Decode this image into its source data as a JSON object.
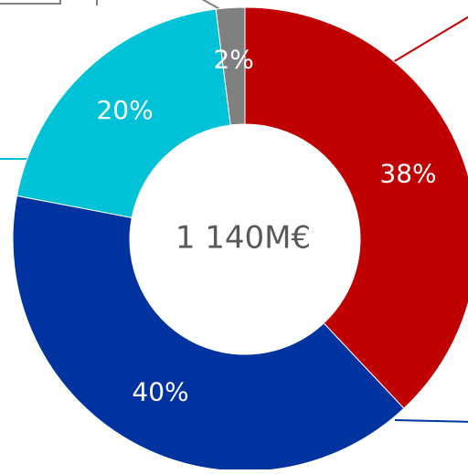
{
  "chart_data": {
    "type": "pie",
    "style": "donut",
    "center_text": "1 140M€",
    "slices": [
      {
        "value": 38,
        "label": "38%",
        "color": "#C00000"
      },
      {
        "value": 40,
        "label": "40%",
        "color": "#0033A0"
      },
      {
        "value": 20,
        "label": "20%",
        "color": "#00C2D7"
      },
      {
        "value": 2,
        "label": "2%",
        "color": "#808080"
      }
    ],
    "leader_line_colors": [
      "#C00000",
      "#0033A0",
      "#00C2D7",
      "#808080"
    ],
    "legend": "none"
  }
}
